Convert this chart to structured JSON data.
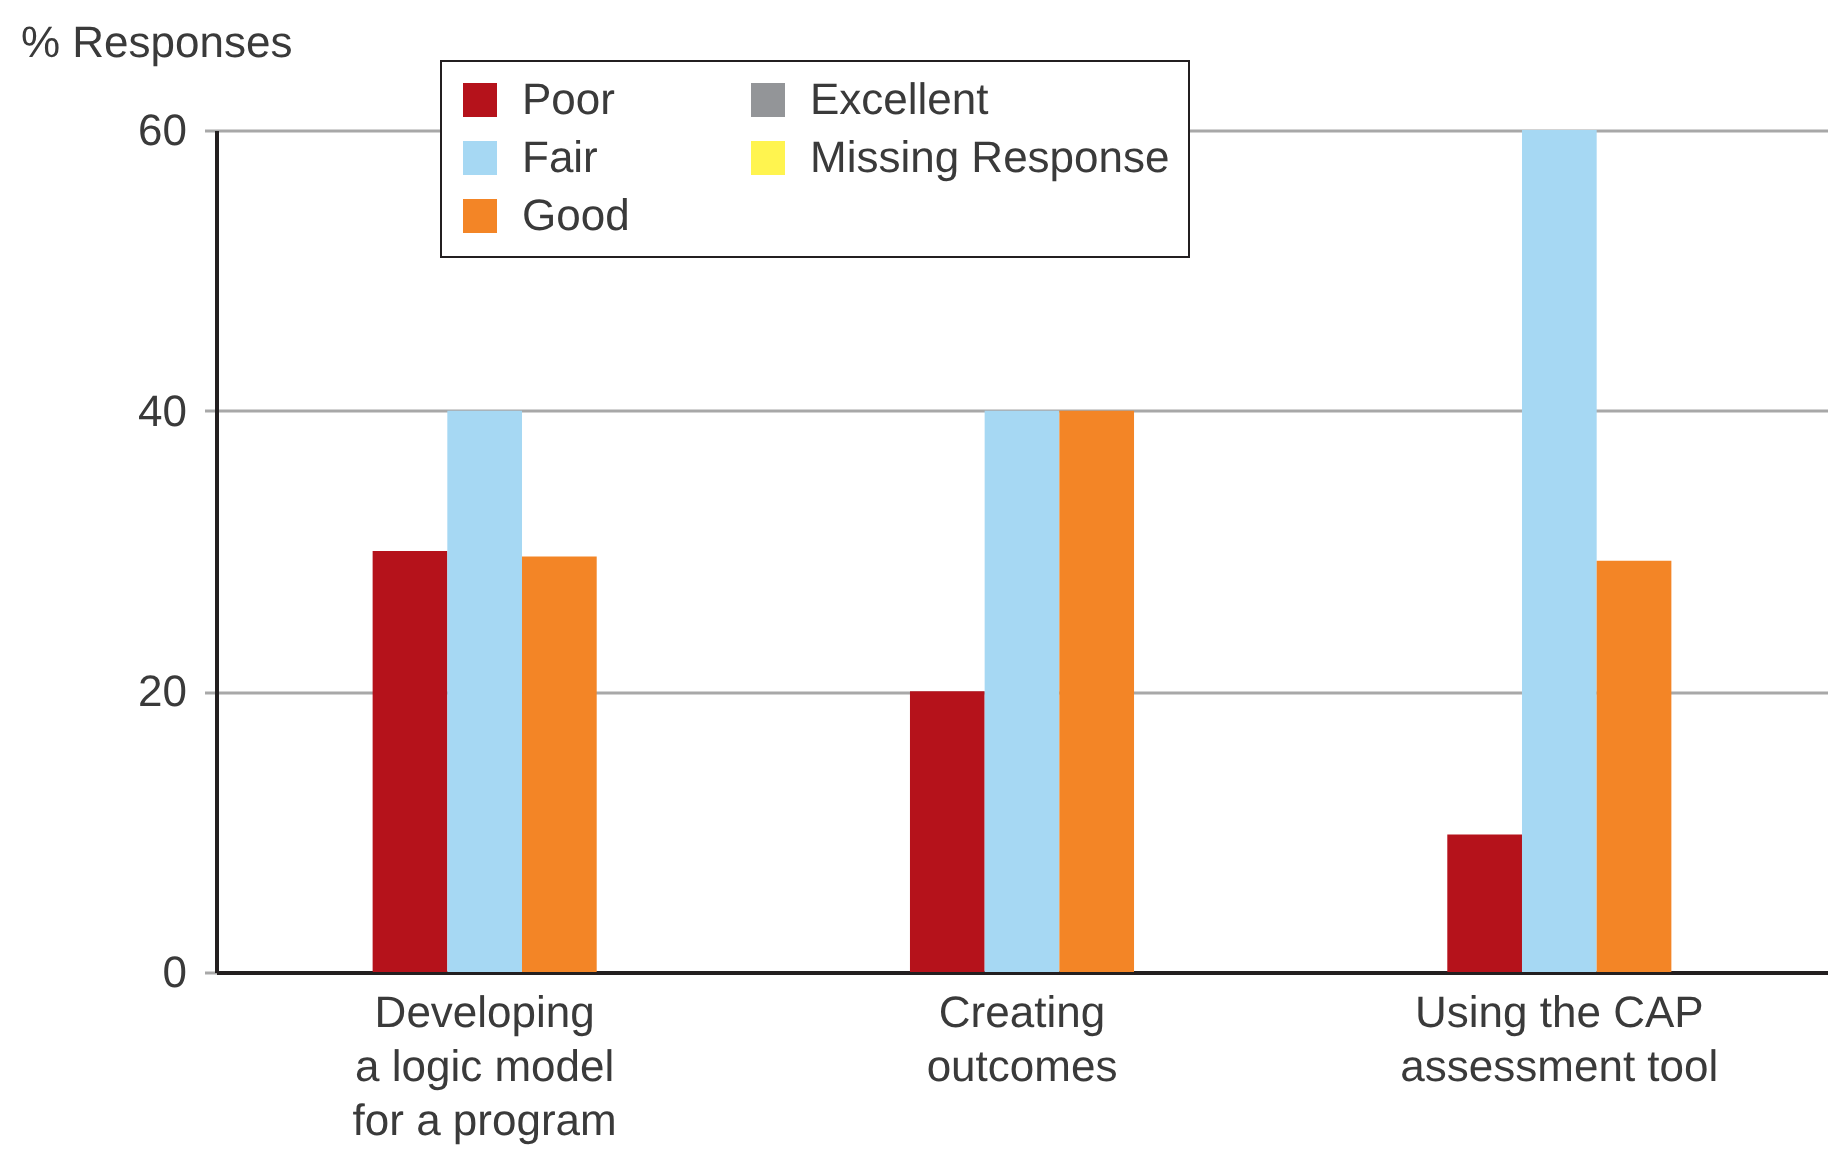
{
  "chart_data": {
    "type": "bar",
    "ylabel": "% Responses",
    "categories": [
      "Developing\na logic model\nfor a program",
      "Creating\noutcomes",
      "Using the CAP\nassessment tool"
    ],
    "series": [
      {
        "name": "Poor",
        "color": "#b5121b",
        "values": [
          30,
          20,
          9.8
        ]
      },
      {
        "name": "Fair",
        "color": "#a6d8f3",
        "values": [
          40,
          40,
          60
        ]
      },
      {
        "name": "Good",
        "color": "#f38526",
        "values": [
          29.6,
          40,
          29.3
        ]
      },
      {
        "name": "Excellent",
        "color": "#939598",
        "values": [
          null,
          null,
          null
        ]
      },
      {
        "name": "Missing Response",
        "color": "#fff44f",
        "values": [
          null,
          null,
          null
        ]
      }
    ],
    "ylim": [
      0,
      60
    ],
    "yticks": [
      0,
      20,
      40,
      60
    ],
    "grid": "y",
    "legend": "top"
  }
}
